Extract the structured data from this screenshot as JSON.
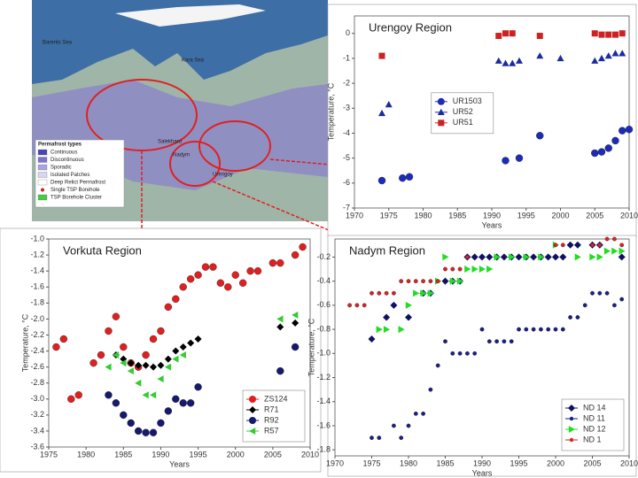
{
  "chart_data": [
    {
      "type": "scatter",
      "title": "Urengoy Region",
      "xlabel": "Years",
      "ylabel": "Temperature, °C",
      "xlim": [
        1970,
        2010
      ],
      "xticks": [
        1970,
        1975,
        1980,
        1985,
        1990,
        1995,
        2000,
        2005,
        2010
      ],
      "ylim": [
        -7,
        0.7
      ],
      "yticks": [
        0,
        -1,
        -2,
        -3,
        -4,
        -5,
        -6,
        -7
      ],
      "grid": false,
      "legend": "center",
      "series": [
        {
          "name": "UR1503",
          "color": "#1c2bb8",
          "marker": "circle",
          "x": [
            1974,
            1977,
            1978,
            1992,
            1994,
            1997,
            2005,
            2006,
            2007,
            2008,
            2009,
            2010
          ],
          "values": [
            -5.9,
            -5.8,
            -5.75,
            -5.1,
            -5.0,
            -4.1,
            -4.8,
            -4.75,
            -4.6,
            -4.3,
            -3.9,
            -3.85
          ]
        },
        {
          "name": "UR52",
          "color": "#1c2b9e",
          "marker": "triangle",
          "x": [
            1974,
            1975,
            1991,
            1992,
            1993,
            1994,
            1997,
            2000,
            2005,
            2006,
            2007,
            2008,
            2009
          ],
          "values": [
            -3.2,
            -2.85,
            -1.1,
            -1.2,
            -1.2,
            -1.1,
            -0.9,
            -1.0,
            -1.1,
            -1.0,
            -0.9,
            -0.8,
            -0.8
          ]
        },
        {
          "name": "UR51",
          "color": "#cc2222",
          "marker": "square",
          "x": [
            1974,
            1991,
            1992,
            1993,
            1997,
            2005,
            2006,
            2007,
            2008,
            2009
          ],
          "values": [
            -0.9,
            -0.1,
            0.0,
            0.0,
            -0.1,
            0.0,
            -0.05,
            -0.05,
            -0.05,
            0.0
          ]
        }
      ]
    },
    {
      "type": "scatter",
      "title": "Vorkuta Region",
      "xlabel": "Years",
      "ylabel": "Temperature, °C",
      "xlim": [
        1975,
        2010
      ],
      "xticks": [
        1975,
        1980,
        1985,
        1990,
        1995,
        2000,
        2005,
        2010
      ],
      "ylim": [
        -3.6,
        -1.0
      ],
      "yticks": [
        {
          "value": -1.0,
          "label": "-1.0"
        },
        -1.2,
        -1.4,
        -1.6,
        -1.8,
        {
          "value": -2.0,
          "label": "-2.0"
        },
        -2.2,
        -2.4,
        -2.6,
        -2.8,
        {
          "value": -3.0,
          "label": "-3.0"
        },
        -3.2,
        -3.4,
        -3.6
      ],
      "grid": false,
      "legend": "lower right",
      "series": [
        {
          "name": "ZS124",
          "color": "#e02020",
          "marker": "circle",
          "x": [
            1976,
            1977,
            1978,
            1979,
            1981,
            1982,
            1983,
            1984,
            1985,
            1986,
            1987,
            1988,
            1989,
            1990,
            1991,
            1992,
            1993,
            1994,
            1995,
            1996,
            1997,
            1998,
            1999,
            2000,
            2001,
            2002,
            2003,
            2005,
            2006,
            2008,
            2009
          ],
          "values": [
            -2.35,
            -2.25,
            -3.0,
            -2.95,
            -2.55,
            -2.45,
            -2.15,
            -1.97,
            -2.35,
            -2.55,
            -2.6,
            -2.45,
            -2.25,
            -2.15,
            -1.85,
            -1.75,
            -1.6,
            -1.5,
            -1.45,
            -1.35,
            -1.35,
            -1.55,
            -1.6,
            -1.45,
            -1.55,
            -1.4,
            -1.4,
            -1.3,
            -1.3,
            -1.2,
            -1.1
          ]
        },
        {
          "name": "R71",
          "color": "#000000",
          "marker": "diamond",
          "x": [
            1984,
            1985,
            1986,
            1987,
            1988,
            1989,
            1990,
            1991,
            1992,
            1993,
            1994,
            1995,
            2006,
            2008
          ],
          "values": [
            -2.45,
            -2.5,
            -2.55,
            -2.58,
            -2.58,
            -2.6,
            -2.58,
            -2.5,
            -2.4,
            -2.35,
            -2.3,
            -2.25,
            -2.1,
            -2.05
          ]
        },
        {
          "name": "R92",
          "color": "#151a6e",
          "marker": "circle",
          "x": [
            1983,
            1984,
            1985,
            1986,
            1987,
            1988,
            1989,
            1990,
            1991,
            1992,
            1993,
            1994,
            1995,
            2006,
            2008
          ],
          "values": [
            -2.95,
            -3.05,
            -3.2,
            -3.3,
            -3.4,
            -3.42,
            -3.42,
            -3.3,
            -3.15,
            -3.0,
            -3.05,
            -3.05,
            -2.85,
            -2.65,
            -2.35
          ]
        },
        {
          "name": "R57",
          "color": "#33cc33",
          "marker": "triangle-left",
          "x": [
            1983,
            1984,
            1985,
            1986,
            1987,
            1988,
            1989,
            1990,
            1991,
            1992,
            1993,
            2006,
            2008
          ],
          "values": [
            -2.6,
            -2.45,
            -2.55,
            -2.65,
            -2.8,
            -2.95,
            -2.95,
            -2.75,
            -2.6,
            -2.5,
            -2.45,
            -2.0,
            -1.95
          ]
        }
      ]
    },
    {
      "type": "scatter",
      "title": "Nadym Region",
      "xlabel": "Years",
      "ylabel": "Temperature, °C",
      "xlim": [
        1970,
        2010
      ],
      "xticks": [
        1970,
        1975,
        1980,
        1985,
        1990,
        1995,
        2000,
        2005,
        2010
      ],
      "ylim": [
        -1.85,
        -0.05
      ],
      "yticks": [
        -0.2,
        -0.4,
        -0.6,
        -0.8,
        {
          "value": -1.0,
          "label": "-1.0"
        },
        -1.2,
        -1.4,
        -1.6,
        -1.8
      ],
      "grid": false,
      "legend": "lower right",
      "series": [
        {
          "name": "ND 14",
          "color": "#101060",
          "marker": "diamond",
          "x": [
            1975,
            1977,
            1978,
            1980,
            1982,
            1983,
            1985,
            1986,
            1987,
            1988,
            1989,
            1990,
            1991,
            1992,
            1993,
            1994,
            1995,
            1996,
            1997,
            1998,
            1999,
            2000,
            2001,
            2002,
            2003,
            2005,
            2006,
            2009
          ],
          "values": [
            -0.88,
            -0.7,
            -0.6,
            -0.7,
            -0.5,
            -0.5,
            -0.4,
            -0.4,
            -0.4,
            -0.2,
            -0.2,
            -0.2,
            -0.2,
            -0.2,
            -0.2,
            -0.2,
            -0.2,
            -0.2,
            -0.2,
            -0.2,
            -0.2,
            -0.2,
            -0.2,
            -0.1,
            -0.1,
            -0.1,
            -0.1,
            -0.2
          ]
        },
        {
          "name": "ND 11",
          "color": "#1a1f8a",
          "marker": "circle-small",
          "x": [
            1975,
            1976,
            1978,
            1979,
            1980,
            1981,
            1982,
            1983,
            1984,
            1985,
            1986,
            1987,
            1988,
            1989,
            1990,
            1991,
            1992,
            1993,
            1994,
            1995,
            1996,
            1997,
            1998,
            1999,
            2000,
            2001,
            2002,
            2003,
            2004,
            2005,
            2006,
            2007,
            2008,
            2009
          ],
          "values": [
            -1.7,
            -1.7,
            -1.6,
            -1.7,
            -1.6,
            -1.5,
            -1.5,
            -1.3,
            -1.1,
            -0.9,
            -1.0,
            -1.0,
            -1.0,
            -1.0,
            -0.8,
            -0.9,
            -0.9,
            -0.9,
            -0.9,
            -0.8,
            -0.8,
            -0.8,
            -0.8,
            -0.8,
            -0.8,
            -0.8,
            -0.7,
            -0.7,
            -0.6,
            -0.5,
            -0.5,
            -0.5,
            -0.6,
            -0.55
          ]
        },
        {
          "name": "ND 12",
          "color": "#22dd22",
          "marker": "triangle-right",
          "x": [
            1976,
            1977,
            1979,
            1980,
            1981,
            1982,
            1983,
            1984,
            1985,
            1986,
            1987,
            1988,
            1989,
            1990,
            1991,
            1992,
            1994,
            1996,
            1998,
            2000,
            2003,
            2005,
            2006,
            2007,
            2008,
            2009
          ],
          "values": [
            -0.8,
            -0.8,
            -0.8,
            -0.6,
            -0.5,
            -0.5,
            -0.5,
            -0.4,
            -0.2,
            -0.4,
            -0.4,
            -0.3,
            -0.3,
            -0.3,
            -0.3,
            -0.2,
            -0.2,
            -0.2,
            -0.2,
            -0.1,
            -0.2,
            -0.2,
            -0.2,
            -0.15,
            -0.15,
            -0.15
          ]
        },
        {
          "name": "ND 1",
          "color": "#dd2222",
          "marker": "circle-small",
          "x": [
            1972,
            1973,
            1974,
            1975,
            1976,
            1977,
            1978,
            1979,
            1980,
            1981,
            1982,
            1983,
            1984,
            1985,
            1986,
            1987,
            1988,
            2000,
            2001,
            2005,
            2006,
            2007,
            2008,
            2009
          ],
          "values": [
            -0.6,
            -0.6,
            -0.6,
            -0.5,
            -0.5,
            -0.5,
            -0.5,
            -0.4,
            -0.4,
            -0.4,
            -0.4,
            -0.4,
            -0.4,
            -0.3,
            -0.3,
            -0.3,
            -0.2,
            -0.1,
            -0.1,
            -0.1,
            -0.1,
            -0.05,
            -0.05,
            -0.1
          ]
        }
      ]
    }
  ],
  "map": {
    "seas": [
      "Barents Sea",
      "Kara Sea"
    ],
    "places": [
      "Salekhard",
      "Nadym",
      "Urengoy"
    ],
    "legend_title": "Permafrost types",
    "legend": [
      "Continuous",
      "Discontinuous",
      "Sporadic",
      "Isolated Patches",
      "Deep Relict Permafrost",
      "Single TSP Borehole",
      "TSP Borehole Cluster"
    ]
  }
}
